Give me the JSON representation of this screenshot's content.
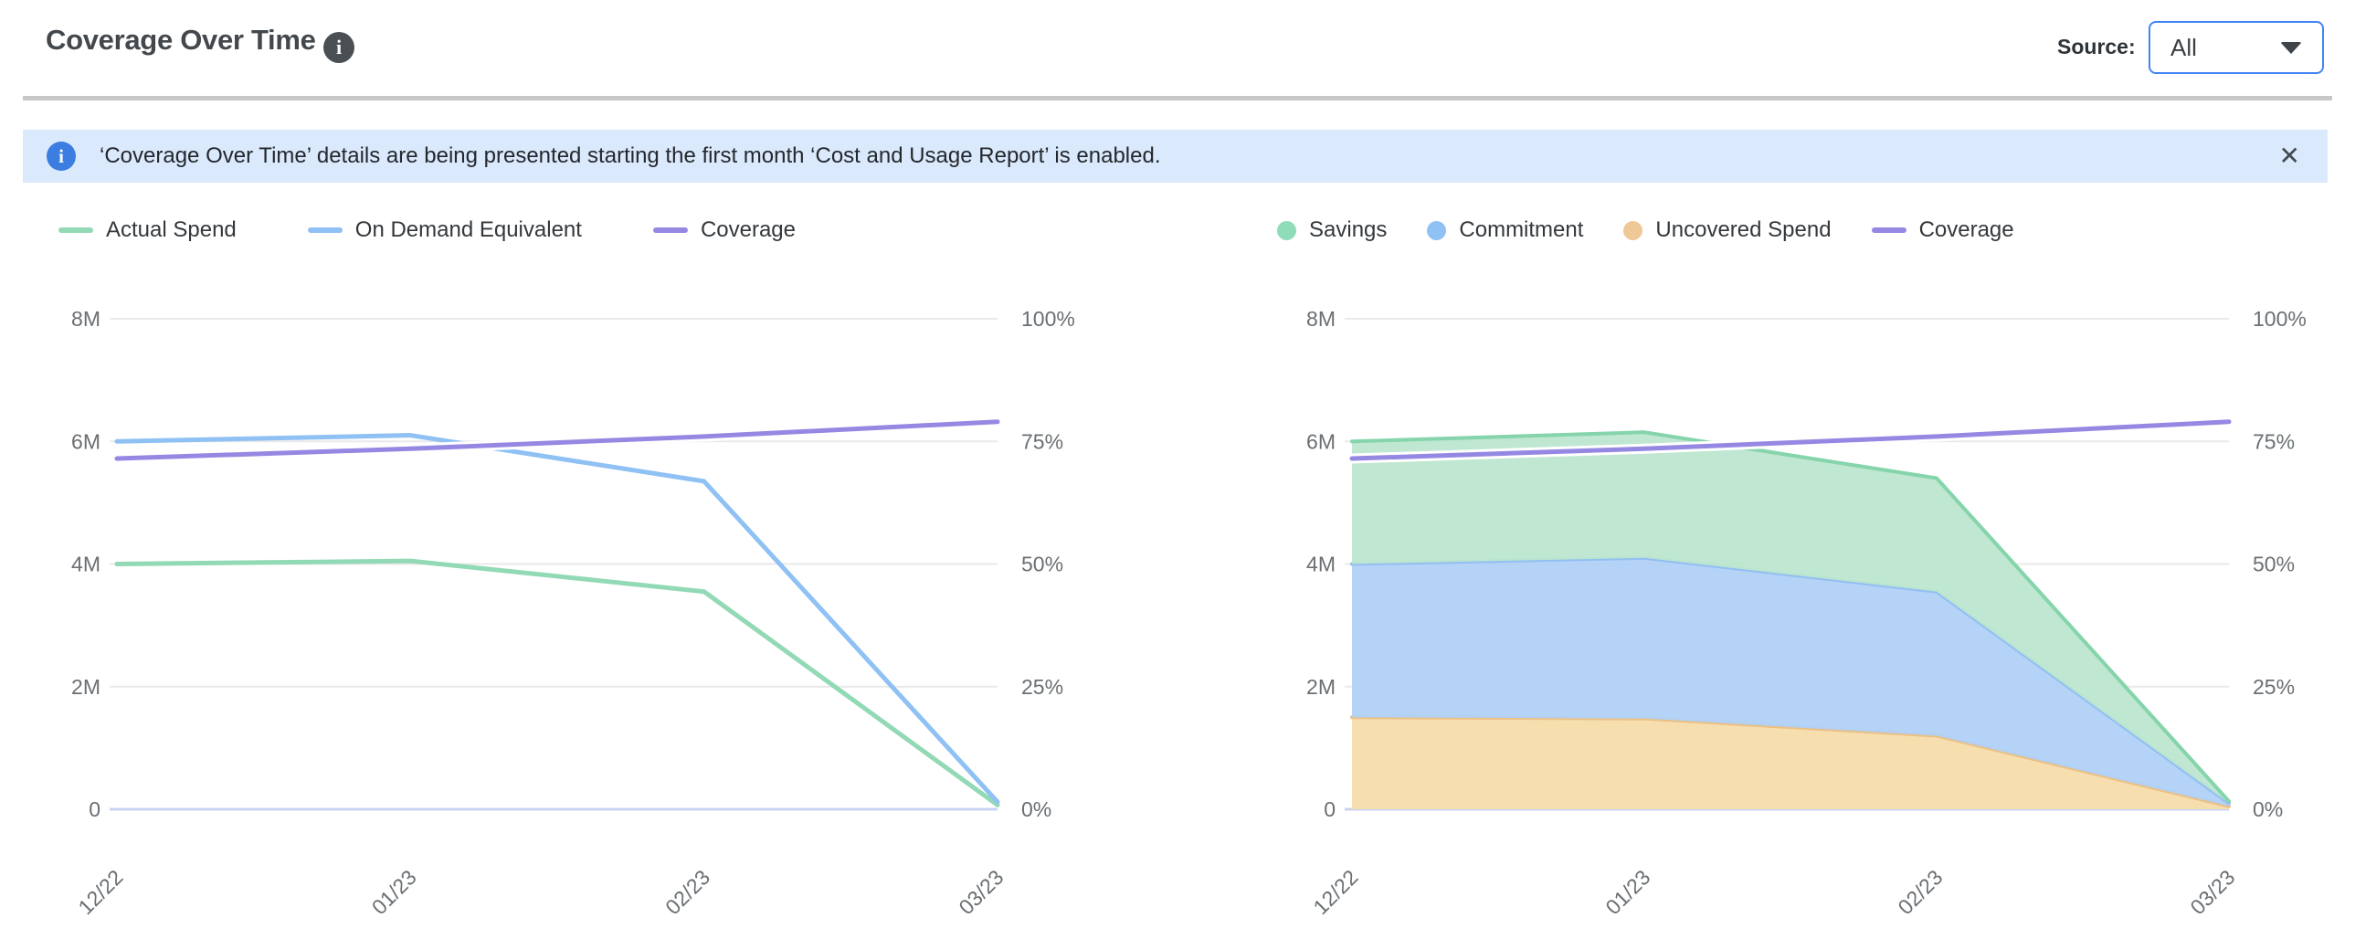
{
  "header": {
    "title": "Coverage Over Time",
    "source_label": "Source:",
    "source_value": "All"
  },
  "banner": {
    "text": "‘Coverage Over Time’ details are being presented starting the first month ‘Cost and Usage Report’ is enabled.",
    "close_glyph": "✕"
  },
  "icons": {
    "title_info": "i",
    "banner_info": "i"
  },
  "colors": {
    "accent_blue": "#4285f4",
    "banner_bg": "#dbe9fc",
    "banner_icon": "#3b7de0",
    "grid": "#e9e9e9",
    "zero_line": "#c9d4f4",
    "tick_text": "#6a6f73",
    "green_line": "#92d9b5",
    "blue_line": "#8fc1f4",
    "purple_line": "#9588e2",
    "green_fill": "#bce6cf",
    "green_edge": "#85d4ab",
    "blue_fill": "#b0d1f7",
    "blue_edge": "#92bff2",
    "orange_fill": "#f5dcab",
    "orange_edge": "#ecc084"
  },
  "chart_data": [
    {
      "type": "line",
      "title": "Coverage Over Time — spend lines",
      "x": [
        "12/22",
        "01/23",
        "02/23",
        "03/23"
      ],
      "y_left": {
        "ticks": [
          "8M",
          "6M",
          "4M",
          "2M",
          "0"
        ],
        "min": 0,
        "max": 8000000
      },
      "y_right": {
        "ticks": [
          "100%",
          "75%",
          "50%",
          "25%",
          "0%"
        ],
        "min": 0,
        "max": 100
      },
      "grid": true,
      "legend_position": "top-left",
      "legend": [
        {
          "label": "Actual Spend",
          "swatch": "line",
          "color": "#92d9b5"
        },
        {
          "label": "On Demand Equivalent",
          "swatch": "line",
          "color": "#8fc1f4"
        },
        {
          "label": "Coverage",
          "swatch": "line",
          "color": "#9588e2"
        }
      ],
      "series": [
        {
          "name": "Actual Spend",
          "type": "line",
          "axis": "left",
          "color": "#92d9b5",
          "values": [
            4000000,
            4050000,
            3550000,
            70000
          ]
        },
        {
          "name": "On Demand Equivalent",
          "type": "line",
          "axis": "left",
          "color": "#8fc1f4",
          "values": [
            6000000,
            6100000,
            5350000,
            120000
          ]
        },
        {
          "name": "Coverage",
          "type": "line",
          "axis": "right",
          "color": "#9588e2",
          "halo": "#ffffff",
          "values": [
            71.5,
            73.5,
            76,
            79
          ]
        }
      ]
    },
    {
      "type": "area",
      "title": "Coverage Over Time — stacked savings",
      "x": [
        "12/22",
        "01/23",
        "02/23",
        "03/23"
      ],
      "y_left": {
        "ticks": [
          "8M",
          "6M",
          "4M",
          "2M",
          "0"
        ],
        "min": 0,
        "max": 8000000
      },
      "y_right": {
        "ticks": [
          "100%",
          "75%",
          "50%",
          "25%",
          "0%"
        ],
        "min": 0,
        "max": 100
      },
      "grid": true,
      "legend_position": "top-left",
      "legend": [
        {
          "label": "Savings",
          "swatch": "circle",
          "color": "#8fdcb8"
        },
        {
          "label": "Commitment",
          "swatch": "circle",
          "color": "#8fc1f4"
        },
        {
          "label": "Uncovered Spend",
          "swatch": "circle",
          "color": "#eec896"
        },
        {
          "label": "Coverage",
          "swatch": "line",
          "color": "#9588e2"
        }
      ],
      "series": [
        {
          "name": "Uncovered Spend",
          "type": "area",
          "stack": true,
          "axis": "left",
          "edge": "#ecc084",
          "fill": "#f5dcab",
          "values": [
            1500000,
            1480000,
            1200000,
            50000
          ]
        },
        {
          "name": "Commitment",
          "type": "area",
          "stack": true,
          "axis": "left",
          "edge": "#92bff2",
          "fill": "#b0d1f7",
          "values": [
            2500000,
            2620000,
            2350000,
            50000
          ]
        },
        {
          "name": "Savings",
          "type": "area",
          "stack": true,
          "axis": "left",
          "edge": "#85d4ab",
          "fill": "#bce6cf",
          "values": [
            2000000,
            2050000,
            1850000,
            30000
          ]
        },
        {
          "name": "Coverage",
          "type": "line",
          "axis": "right",
          "color": "#9588e2",
          "halo": "#ffffff",
          "values": [
            71.5,
            73.5,
            76,
            79
          ]
        }
      ]
    }
  ]
}
